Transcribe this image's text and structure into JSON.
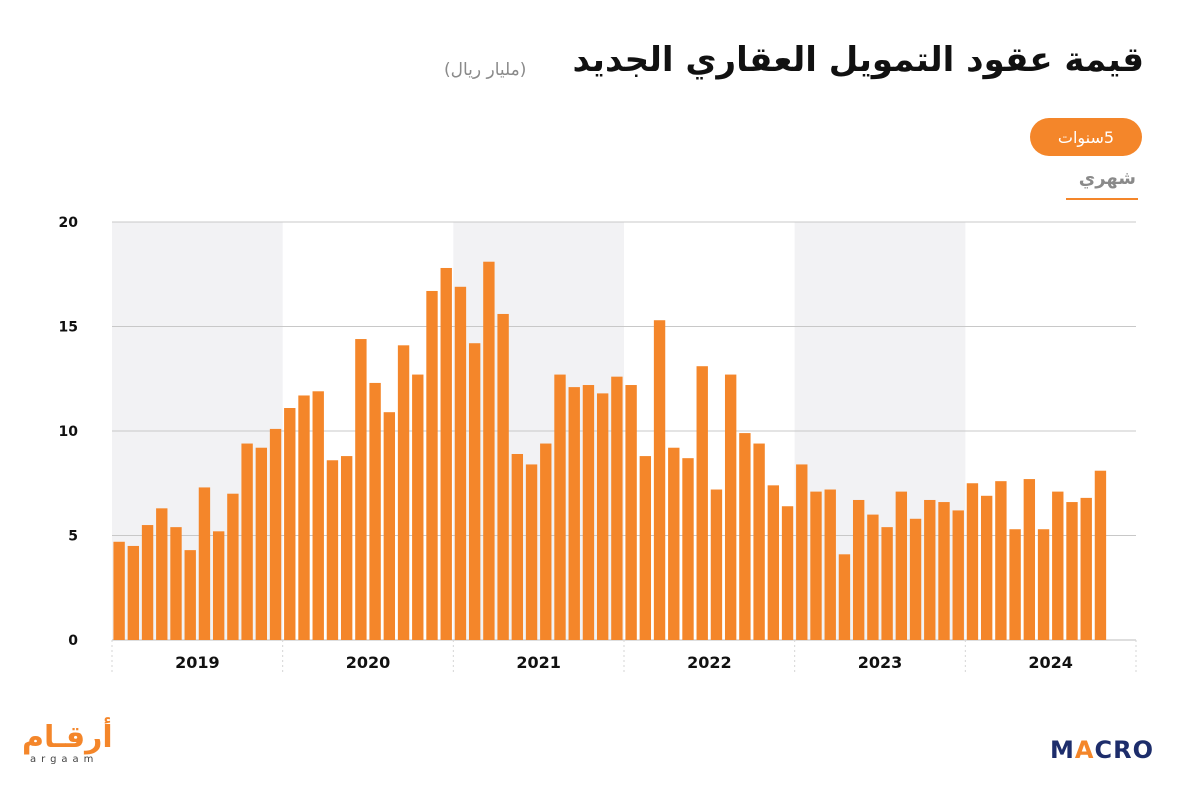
{
  "header": {
    "title": "قيمة عقود التمويل العقاري الجديد",
    "unit": "(مليار ريال)"
  },
  "controls": {
    "period_button": "5سنوات",
    "monthly_tab": "شهري"
  },
  "logos": {
    "argaam_arabic": "أرقـام",
    "argaam_latin": "argaam",
    "macro_prefix": "M",
    "macro_accent": "A",
    "macro_suffix": "CRO"
  },
  "colors": {
    "bar": "#f4862a",
    "band": "#f2f2f4",
    "accent": "#f4862a",
    "macro_navy": "#1d2d6b"
  },
  "chart_data": {
    "type": "bar",
    "title": "قيمة عقود التمويل العقاري الجديد",
    "ylabel": "",
    "xlabel": "",
    "ylim": [
      0,
      20
    ],
    "yticks": [
      0,
      5,
      10,
      15,
      20
    ],
    "grid": true,
    "year_labels": [
      "2019",
      "2020",
      "2021",
      "2022",
      "2023",
      "2024"
    ],
    "months_per_year": 12,
    "series": [
      {
        "values": [
          4.7,
          4.5,
          5.5,
          6.3,
          5.4,
          4.3,
          7.3,
          5.2,
          7.0,
          9.4,
          9.2,
          10.1,
          11.1,
          11.7,
          11.9,
          8.6,
          8.8,
          14.4,
          12.3,
          10.9,
          14.1,
          12.7,
          16.7,
          17.8,
          16.9,
          14.2,
          18.1,
          15.6,
          8.9,
          8.4,
          9.4,
          12.7,
          12.1,
          12.2,
          11.8,
          12.6,
          12.2,
          8.8,
          15.3,
          9.2,
          8.7,
          13.1,
          7.2,
          12.7,
          9.9,
          9.4,
          7.4,
          6.4,
          8.4,
          7.1,
          7.2,
          4.1,
          6.7,
          6.0,
          5.4,
          7.1,
          5.8,
          6.7,
          6.6,
          6.2,
          7.5,
          6.9,
          7.6,
          5.3,
          7.7,
          5.3,
          7.1,
          6.6,
          6.8,
          8.1
        ]
      }
    ]
  }
}
